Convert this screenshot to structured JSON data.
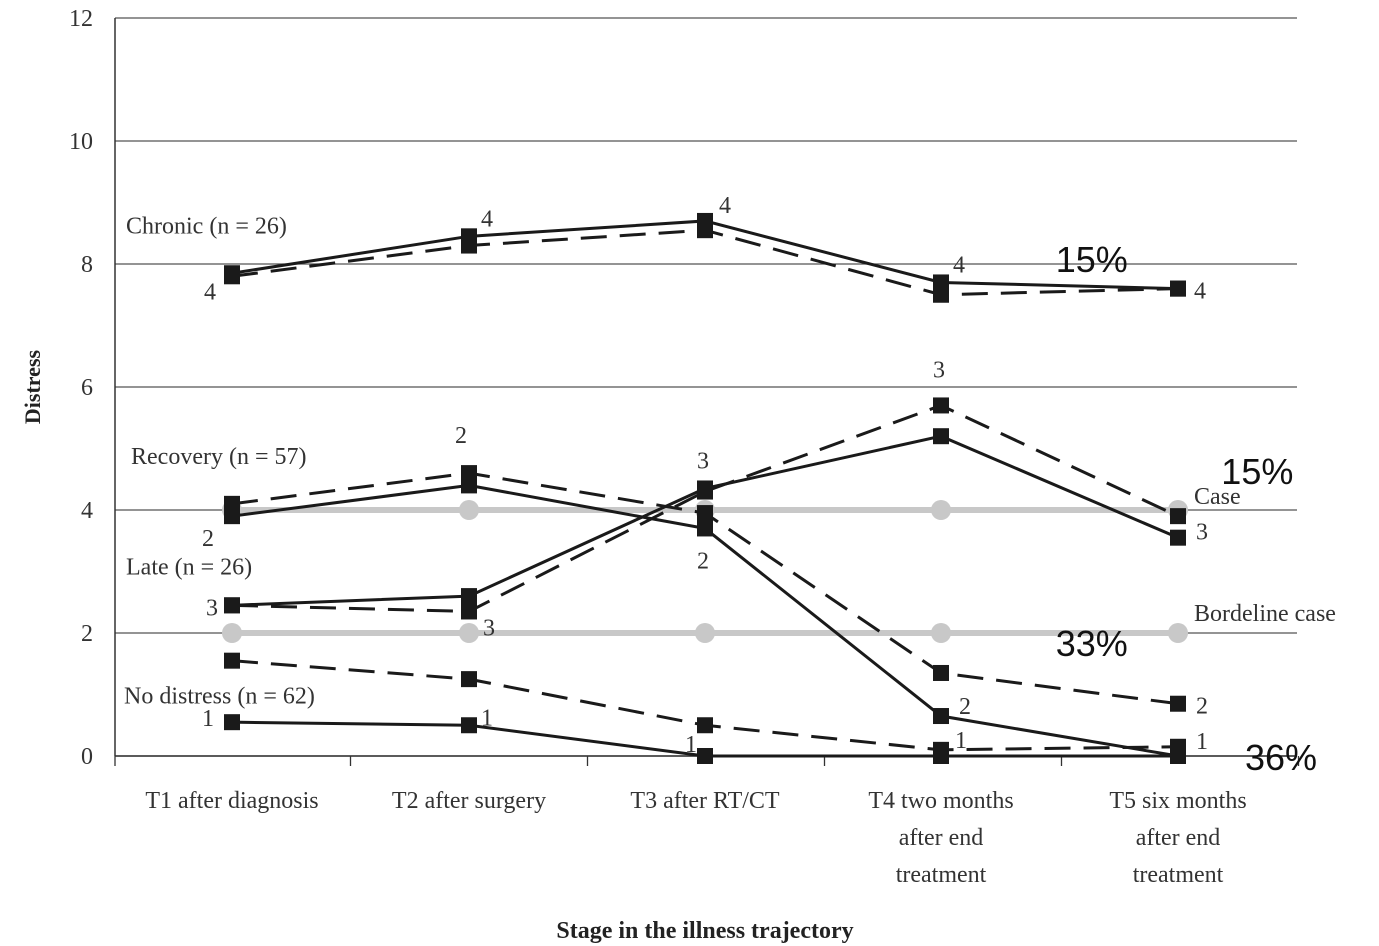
{
  "chart_data": {
    "type": "line",
    "xlabel": "Stage in the illness trajectory",
    "ylabel": "Distress",
    "ylim": [
      0,
      12
    ],
    "yticks": [
      0,
      2,
      4,
      6,
      8,
      10,
      12
    ],
    "grid": true,
    "categories": [
      [
        "T1 after diagnosis"
      ],
      [
        "T2 after surgery"
      ],
      [
        "T3 after RT/CT"
      ],
      [
        "T4 two months",
        "after end",
        "treatment"
      ],
      [
        "T5 six months",
        "after end",
        "treatment"
      ]
    ],
    "groups": [
      {
        "label": "Chronic (n = 26)",
        "cluster": "4"
      },
      {
        "label": "Recovery (n = 57)",
        "cluster": "2"
      },
      {
        "label": "Late (n = 26)",
        "cluster": "3"
      },
      {
        "label": "No distress (n = 62)",
        "cluster": "1"
      }
    ],
    "series": [
      {
        "cluster": "4",
        "style": "solid",
        "values": [
          7.85,
          8.45,
          8.7,
          7.7,
          7.6
        ]
      },
      {
        "cluster": "4",
        "style": "dashed",
        "values": [
          7.8,
          8.3,
          8.55,
          7.5,
          7.6
        ]
      },
      {
        "cluster": "2",
        "style": "solid",
        "values": [
          3.9,
          4.4,
          3.7,
          0.65,
          0.0
        ]
      },
      {
        "cluster": "2",
        "style": "dashed",
        "values": [
          4.1,
          4.6,
          3.95,
          1.35,
          0.85
        ]
      },
      {
        "cluster": "3",
        "style": "solid",
        "values": [
          2.45,
          2.6,
          4.35,
          5.2,
          3.55
        ]
      },
      {
        "cluster": "3",
        "style": "dashed",
        "values": [
          2.45,
          2.35,
          4.3,
          5.7,
          3.9
        ]
      },
      {
        "cluster": "1",
        "style": "solid",
        "values": [
          0.55,
          0.5,
          0.0,
          0.0,
          0.0
        ]
      },
      {
        "cluster": "1",
        "style": "dashed",
        "values": [
          1.55,
          1.25,
          0.5,
          0.1,
          0.15
        ]
      }
    ],
    "point_labels": [
      {
        "text": "4",
        "x": 0,
        "y": 7.75
      },
      {
        "text": "4",
        "x": 1,
        "y": 8.45
      },
      {
        "text": "4",
        "x": 2,
        "y": 8.7
      },
      {
        "text": "4",
        "x": 3,
        "y": 7.7
      },
      {
        "text": "4",
        "x": 4,
        "y": 7.6
      },
      {
        "text": "2",
        "x": 0,
        "y": 3.9
      },
      {
        "text": "2",
        "x": 1,
        "y": 4.6
      },
      {
        "text": "2",
        "x": 2,
        "y": 3.7
      },
      {
        "text": "2",
        "x": 3,
        "y": 0.65
      },
      {
        "text": "2",
        "x": 4,
        "y": 0.85
      },
      {
        "text": "3",
        "x": 0,
        "y": 2.45
      },
      {
        "text": "3",
        "x": 1,
        "y": 2.35
      },
      {
        "text": "3",
        "x": 2,
        "y": 4.35
      },
      {
        "text": "3",
        "x": 3,
        "y": 5.7
      },
      {
        "text": "3",
        "x": 4,
        "y": 3.55
      },
      {
        "text": "1",
        "x": 0,
        "y": 0.55
      },
      {
        "text": "1",
        "x": 1,
        "y": 0.5
      },
      {
        "text": "1",
        "x": 2,
        "y": 0.0
      },
      {
        "text": "1",
        "x": 3,
        "y": 0.1
      },
      {
        "text": "1",
        "x": 4,
        "y": 0.15
      }
    ],
    "reference_lines": [
      {
        "label": "Case",
        "y": 4
      },
      {
        "label": "Bordeline case",
        "y": 2
      }
    ],
    "annotations": [
      {
        "text": "15%",
        "x": 3.5,
        "y": 8.1
      },
      {
        "text": "15%",
        "x": 4.2,
        "y": 4.65
      },
      {
        "text": "33%",
        "x": 3.5,
        "y": 1.85
      },
      {
        "text": "36%",
        "x": 4.3,
        "y": 0.0
      }
    ]
  }
}
